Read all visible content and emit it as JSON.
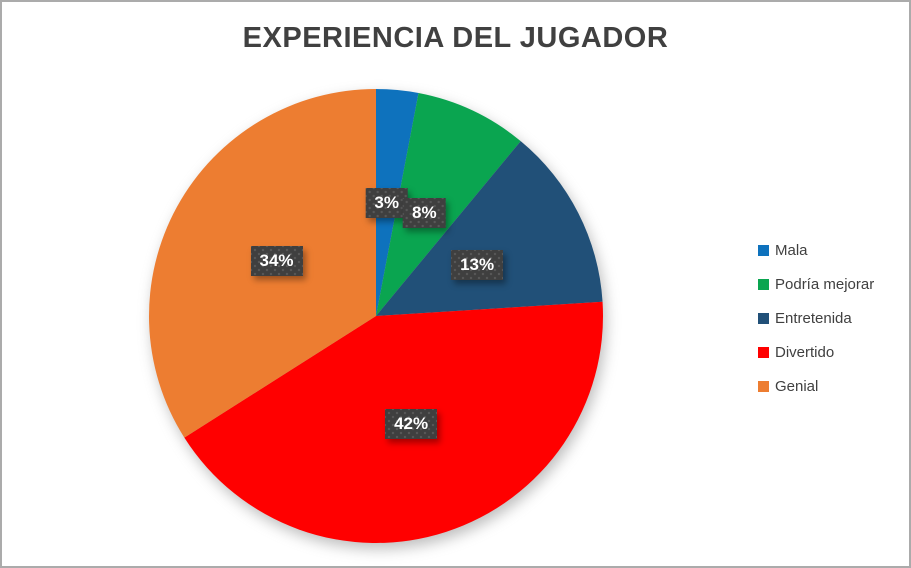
{
  "window": {
    "border_color": "#ABABAB",
    "background_color": "#FFFFFF"
  },
  "chart_data": {
    "type": "pie",
    "title": "EXPERIENCIA DEL JUGADOR",
    "categories": [
      "Mala",
      "Podría mejorar",
      "Entretenida",
      "Divertido",
      "Genial"
    ],
    "values": [
      3,
      8,
      13,
      42,
      34
    ],
    "labels": [
      "3%",
      "8%",
      "13%",
      "42%",
      "34%"
    ],
    "colors": [
      "#0E72BD",
      "#0AA550",
      "#215078",
      "#FF0000",
      "#ED7D31"
    ],
    "start_angle_deg": 0,
    "direction": "clockwise",
    "legend_position": "right",
    "title_color": "#404040",
    "legend_text_color": "#404040",
    "data_label_style": {
      "background": "#3F3F3F",
      "text_color": "#FFFFFF"
    }
  }
}
